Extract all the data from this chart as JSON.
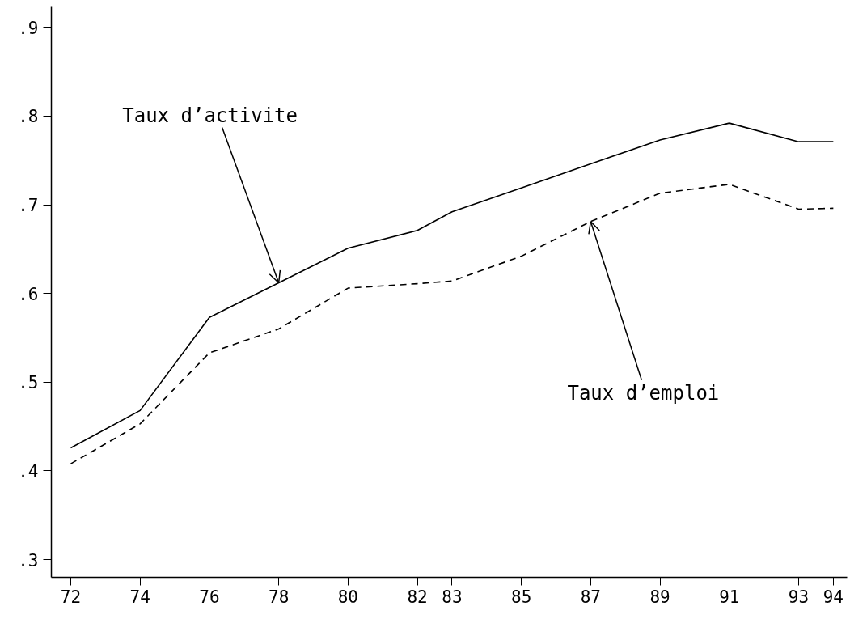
{
  "chart_data": {
    "type": "line",
    "x": [
      72,
      74,
      76,
      78,
      80,
      82,
      83,
      85,
      87,
      89,
      91,
      93,
      94
    ],
    "series": [
      {
        "color": "#000000",
        "line_style": "solid",
        "values": [
          0.426,
          0.468,
          0.573,
          0.612,
          0.651,
          0.671,
          0.692,
          0.719,
          0.746,
          0.773,
          0.792,
          0.771,
          0.771
        ]
      },
      {
        "color": "#000000",
        "line_style": "dashed",
        "values": [
          0.408,
          0.453,
          0.533,
          0.56,
          0.606,
          0.611,
          0.614,
          0.642,
          0.681,
          0.713,
          0.723,
          0.695,
          0.696
        ]
      }
    ],
    "xlim": [
      71.44,
      94.4
    ],
    "ylim": [
      0.28,
      0.923
    ],
    "xticks": [
      72,
      74,
      76,
      78,
      80,
      82,
      83,
      85,
      87,
      89,
      91,
      93,
      94
    ],
    "yticks": [
      {
        "value": 0.3,
        "label": ".3"
      },
      {
        "value": 0.4,
        "label": ".4"
      },
      {
        "value": 0.5,
        "label": ".5"
      },
      {
        "value": 0.6,
        "label": ".6"
      },
      {
        "value": 0.7,
        "label": ".7"
      },
      {
        "value": 0.8,
        "label": ".8"
      },
      {
        "value": 0.9,
        "label": ".9"
      }
    ],
    "annotations": [
      {
        "text": "Taux d’activite",
        "x": 78,
        "y": 0.612
      },
      {
        "text": "Taux d’emploi",
        "x": 87,
        "y": 0.681
      }
    ],
    "marker": "none"
  }
}
